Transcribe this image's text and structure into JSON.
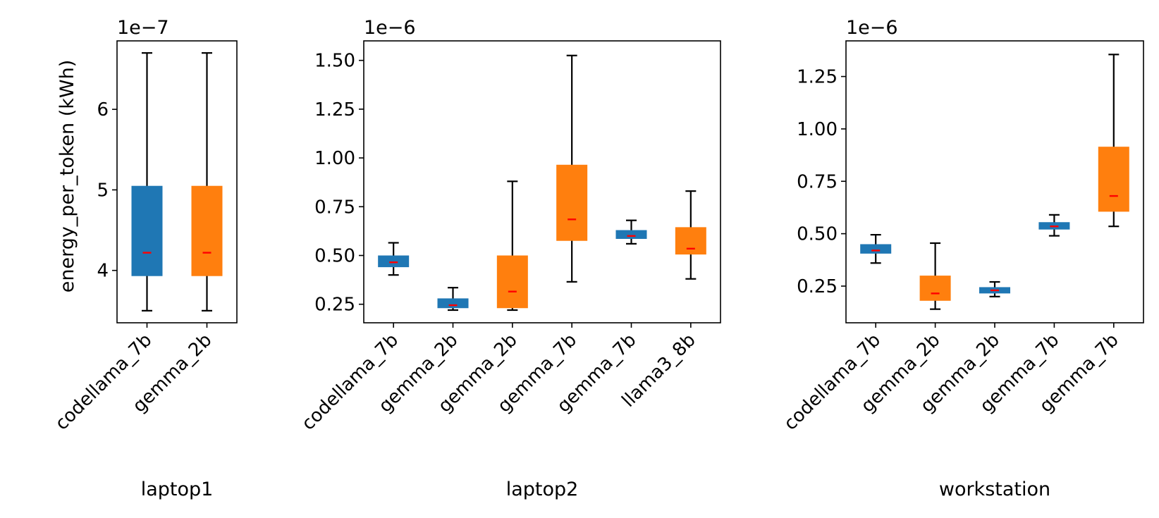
{
  "colors": {
    "blue": "#1f77b4",
    "orange": "#ff7f0e",
    "median": "#ff0000",
    "whisker": "#000000",
    "axes": "#000000",
    "background": "#ffffff"
  },
  "chart_data": [
    {
      "type": "box",
      "panel": "laptop1",
      "xlabel": "laptop1",
      "ylabel": "energy_per_token (kWh)",
      "offset_text": "1e−7",
      "scale": 1e-07,
      "ylim": [
        3.35,
        6.85
      ],
      "yticks": [
        4,
        5,
        6
      ],
      "ytick_labels": [
        "4",
        "5",
        "6"
      ],
      "grid": false,
      "categories": [
        "codellama_7b",
        "gemma_2b"
      ],
      "boxes": [
        {
          "label": "codellama_7b",
          "color": "blue",
          "whislo": 3.5,
          "q1": 3.93,
          "med": 4.22,
          "q3": 5.05,
          "whishi": 6.7
        },
        {
          "label": "gemma_2b",
          "color": "orange",
          "whislo": 3.5,
          "q1": 3.93,
          "med": 4.22,
          "q3": 5.05,
          "whishi": 6.7
        }
      ]
    },
    {
      "type": "box",
      "panel": "laptop2",
      "xlabel": "laptop2",
      "ylabel": "",
      "offset_text": "1e−6",
      "scale": 1e-06,
      "ylim": [
        0.155,
        1.6
      ],
      "yticks": [
        0.25,
        0.5,
        0.75,
        1.0,
        1.25,
        1.5
      ],
      "ytick_labels": [
        "0.25",
        "0.50",
        "0.75",
        "1.00",
        "1.25",
        "1.50"
      ],
      "grid": false,
      "categories": [
        "codellama_7b",
        "gemma_2b",
        "gemma_2b",
        "gemma_7b",
        "gemma_7b",
        "llama3_8b"
      ],
      "boxes": [
        {
          "label": "codellama_7b",
          "color": "blue",
          "whislo": 0.4,
          "q1": 0.44,
          "med": 0.465,
          "q3": 0.5,
          "whishi": 0.565
        },
        {
          "label": "gemma_2b",
          "color": "blue",
          "whislo": 0.22,
          "q1": 0.23,
          "med": 0.245,
          "q3": 0.28,
          "whishi": 0.335
        },
        {
          "label": "gemma_2b",
          "color": "orange",
          "whislo": 0.22,
          "q1": 0.23,
          "med": 0.315,
          "q3": 0.5,
          "whishi": 0.88
        },
        {
          "label": "gemma_7b",
          "color": "orange",
          "whislo": 0.365,
          "q1": 0.575,
          "med": 0.685,
          "q3": 0.965,
          "whishi": 1.525
        },
        {
          "label": "gemma_7b",
          "color": "blue",
          "whislo": 0.56,
          "q1": 0.585,
          "med": 0.6,
          "q3": 0.63,
          "whishi": 0.68
        },
        {
          "label": "llama3_8b",
          "color": "orange",
          "whislo": 0.38,
          "q1": 0.505,
          "med": 0.535,
          "q3": 0.645,
          "whishi": 0.83
        }
      ]
    },
    {
      "type": "box",
      "panel": "workstation",
      "xlabel": "workstation",
      "ylabel": "",
      "offset_text": "1e−6",
      "scale": 1e-06,
      "ylim": [
        0.075,
        1.42
      ],
      "yticks": [
        0.25,
        0.5,
        0.75,
        1.0,
        1.25
      ],
      "ytick_labels": [
        "0.25",
        "0.50",
        "0.75",
        "1.00",
        "1.25"
      ],
      "grid": false,
      "categories": [
        "codellama_7b",
        "gemma_2b",
        "gemma_2b",
        "gemma_7b",
        "gemma_7b"
      ],
      "boxes": [
        {
          "label": "codellama_7b",
          "color": "blue",
          "whislo": 0.36,
          "q1": 0.405,
          "med": 0.42,
          "q3": 0.45,
          "whishi": 0.495
        },
        {
          "label": "gemma_2b",
          "color": "orange",
          "whislo": 0.14,
          "q1": 0.18,
          "med": 0.215,
          "q3": 0.3,
          "whishi": 0.455
        },
        {
          "label": "gemma_2b",
          "color": "blue",
          "whislo": 0.2,
          "q1": 0.215,
          "med": 0.23,
          "q3": 0.245,
          "whishi": 0.27
        },
        {
          "label": "gemma_7b",
          "color": "blue",
          "whislo": 0.49,
          "q1": 0.52,
          "med": 0.535,
          "q3": 0.555,
          "whishi": 0.59
        },
        {
          "label": "gemma_7b",
          "color": "orange",
          "whislo": 0.535,
          "q1": 0.605,
          "med": 0.68,
          "q3": 0.915,
          "whishi": 1.355
        }
      ]
    }
  ]
}
